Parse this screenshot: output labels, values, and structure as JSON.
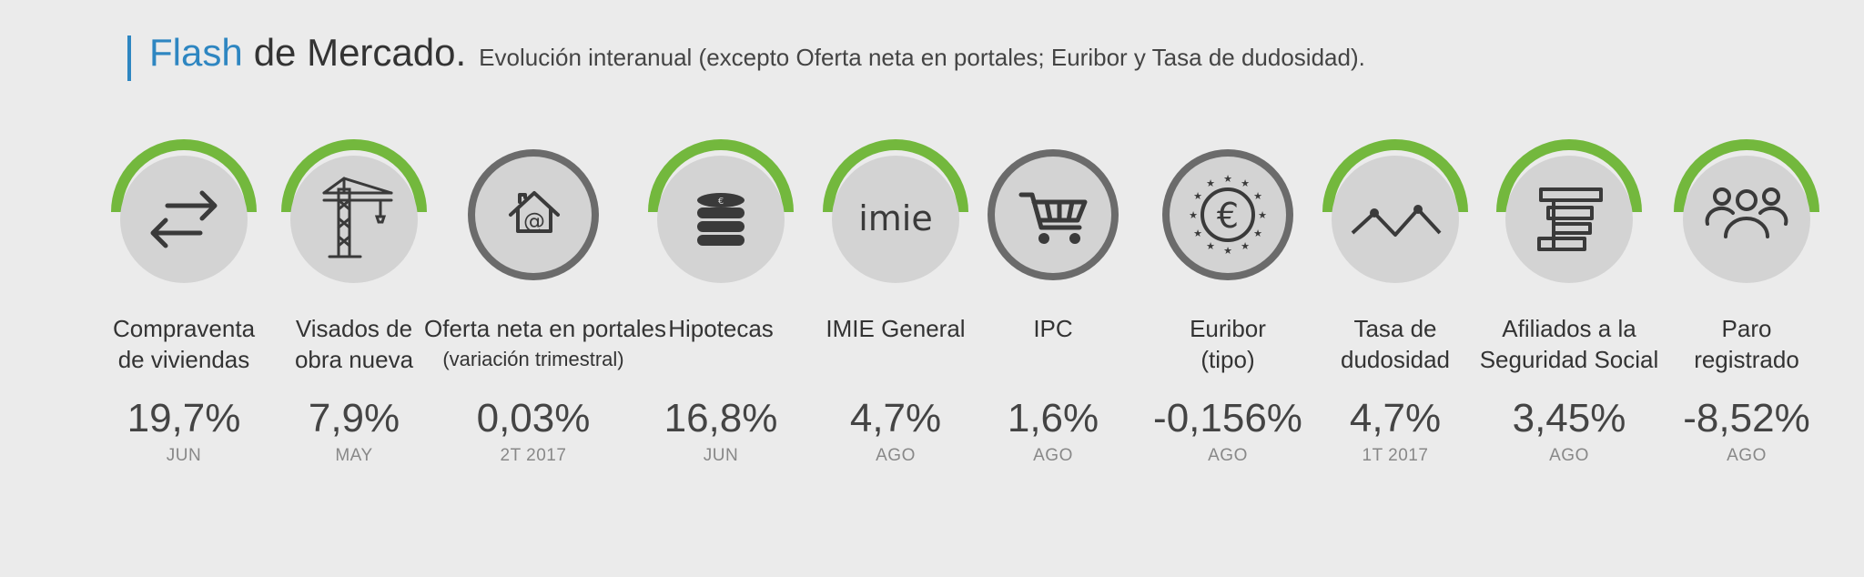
{
  "header": {
    "title_accent": "Flash",
    "title_rest": "de Mercado.",
    "subtitle": "Evolución interanual (excepto Oferta neta en portales; Euribor y Tasa de dudosidad)."
  },
  "colors": {
    "accent_blue": "#2e86c1",
    "trend_green": "#73b83d",
    "neutral_gray": "#6b6b6b",
    "circle_fill": "#d3d3d3"
  },
  "indicators": [
    {
      "label_line1": "Compraventa",
      "label_line2": "de viviendas",
      "value": "19,7%",
      "period": "JUN",
      "icon": "exchange-arrows-icon",
      "ring": "green"
    },
    {
      "label_line1": "Visados de",
      "label_line2": "obra nueva",
      "value": "7,9%",
      "period": "MAY",
      "icon": "crane-icon",
      "ring": "green"
    },
    {
      "label_line1": "Oferta neta en portales",
      "label_line2": "(variación trimestral)",
      "value": "0,03%",
      "period": "2T 2017",
      "icon": "house-at-icon",
      "ring": "gray"
    },
    {
      "label_line1": "Hipotecas",
      "label_line2": "",
      "value": "16,8%",
      "period": "JUN",
      "icon": "coins-stack-icon",
      "ring": "green"
    },
    {
      "label_line1": "IMIE General",
      "label_line2": "",
      "value": "4,7%",
      "period": "AGO",
      "icon": "imie-logo",
      "icon_text": "imie",
      "ring": "green"
    },
    {
      "label_line1": "IPC",
      "label_line2": "",
      "value": "1,6%",
      "period": "AGO",
      "icon": "shopping-cart-icon",
      "ring": "gray"
    },
    {
      "label_line1": "Euribor",
      "label_line2": "(tipo)",
      "value": "-0,156%",
      "period": "AGO",
      "icon": "euro-stars-icon",
      "ring": "gray"
    },
    {
      "label_line1": "Tasa de",
      "label_line2": "dudosidad",
      "value": "4,7%",
      "period": "1T 2017",
      "icon": "trend-line-icon",
      "ring": "green"
    },
    {
      "label_line1": "Afiliados a la",
      "label_line2": "Seguridad Social",
      "value": "3,45%",
      "period": "AGO",
      "icon": "social-security-logo-icon",
      "ring": "green"
    },
    {
      "label_line1": "Paro",
      "label_line2": "registrado",
      "value": "-8,52%",
      "period": "AGO",
      "icon": "people-group-icon",
      "ring": "green"
    }
  ]
}
